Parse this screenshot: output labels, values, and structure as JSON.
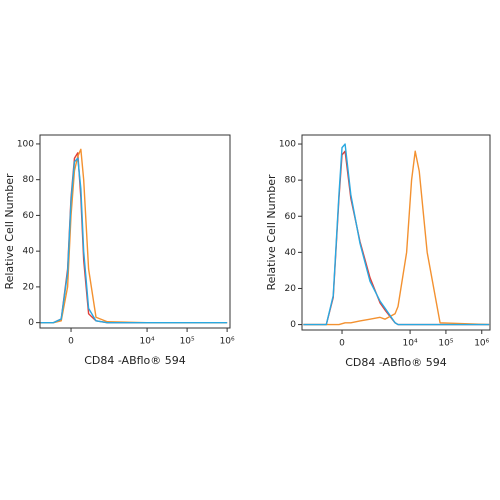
{
  "chart_data": [
    {
      "type": "line",
      "xscale": "biexponential",
      "xlabel": "CD84 -ABflo® 594",
      "ylabel": "Relative Cell Number",
      "xlim": [
        -730,
        1180000
      ],
      "ylim": [
        -3,
        105
      ],
      "xticks": [
        0,
        {
          "value": 10000,
          "label": "10⁴"
        },
        {
          "value": 100000,
          "label": "10⁵"
        },
        {
          "value": 1000000,
          "label": "10⁶"
        }
      ],
      "yticks": [
        0,
        20,
        40,
        60,
        80,
        100
      ],
      "x": [
        -700,
        -300,
        -150,
        -50,
        0,
        50,
        100,
        150,
        200,
        300,
        500,
        1000,
        10000,
        1000000
      ],
      "series": [
        {
          "color": "#e0403a",
          "values": [
            0,
            0,
            2,
            30,
            70,
            92,
            95,
            70,
            35,
            5,
            1,
            0,
            0,
            0
          ]
        },
        {
          "color": "#f39130",
          "values": [
            0,
            0,
            1,
            20,
            60,
            85,
            93,
            97,
            80,
            30,
            3,
            0.5,
            0,
            0
          ]
        },
        {
          "color": "#29a8e0",
          "values": [
            0,
            0,
            2,
            28,
            68,
            90,
            92,
            75,
            40,
            8,
            1,
            0,
            0,
            0
          ]
        }
      ]
    },
    {
      "type": "line",
      "xscale": "biexponential",
      "xlabel": "CD84 -ABflo® 594",
      "ylabel": "Relative Cell Number",
      "xlim": [
        -1640,
        1700000
      ],
      "ylim": [
        -3,
        105
      ],
      "xticks": [
        0,
        {
          "value": 10000,
          "label": "10⁴"
        },
        {
          "value": 100000,
          "label": "10⁵"
        },
        {
          "value": 1000000,
          "label": "10⁶"
        }
      ],
      "yticks": [
        0,
        20,
        40,
        60,
        80,
        100
      ],
      "x": [
        -1500,
        -300,
        -150,
        -50,
        0,
        50,
        150,
        360,
        740,
        1440,
        2000,
        3800,
        4600,
        8000,
        11000,
        13900,
        18000,
        30000,
        68600,
        1600000
      ],
      "series": [
        {
          "color": "#e0403a",
          "values": [
            0,
            0,
            15,
            70,
            94,
            96,
            70,
            46,
            26,
            12,
            8,
            1,
            0,
            0,
            0,
            0,
            0,
            0,
            0,
            0
          ]
        },
        {
          "color": "#f39130",
          "values": [
            0,
            0,
            0,
            0,
            0.5,
            1,
            1,
            2,
            3,
            4,
            3,
            6,
            10,
            40,
            80,
            96,
            85,
            40,
            1,
            0
          ]
        },
        {
          "color": "#29a8e0",
          "values": [
            0,
            0,
            16,
            72,
            98,
            100,
            72,
            45,
            24,
            13,
            9,
            1,
            0,
            0,
            0,
            0,
            0,
            0,
            0,
            0
          ]
        }
      ]
    }
  ]
}
